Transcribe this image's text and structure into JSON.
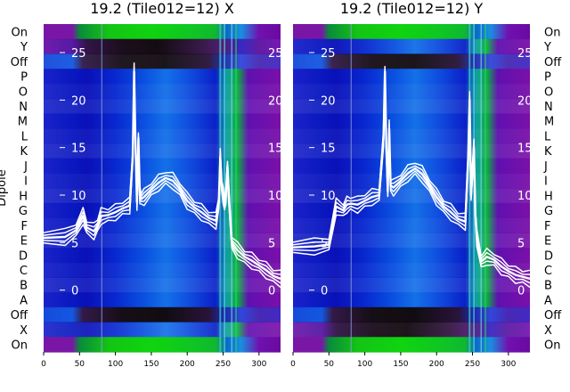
{
  "chart_data": [
    {
      "type": "heatmap",
      "title": "19.2 (Tile012=12) X",
      "ylabel": "Dipole",
      "rows": [
        "On",
        "Y",
        "Off",
        "P",
        "O",
        "N",
        "M",
        "L",
        "K",
        "J",
        "I",
        "H",
        "G",
        "F",
        "E",
        "D",
        "C",
        "B",
        "A",
        "Off",
        "X",
        "On"
      ],
      "x_ticks": [
        0,
        50,
        100,
        150,
        200,
        250,
        300
      ],
      "xlim": [
        0,
        330
      ],
      "overlay_ticks": [
        25,
        20,
        15,
        10,
        5,
        0
      ],
      "overlay_ylim": [
        -6.5,
        28
      ],
      "overlay_series": [
        {
          "x": [
            0,
            30,
            45,
            55,
            60,
            70,
            75,
            80,
            90,
            100,
            110,
            120,
            124,
            126,
            128,
            130,
            132,
            134,
            136,
            140,
            150,
            160,
            170,
            180,
            190,
            200,
            210,
            220,
            230,
            240,
            244,
            246,
            248,
            250,
            252,
            254,
            256,
            258,
            262,
            270,
            280,
            290,
            300,
            310,
            320,
            330
          ],
          "y": [
            5.5,
            5.6,
            6.3,
            7.8,
            6.6,
            6.2,
            6.8,
            7.8,
            7.9,
            8.2,
            8.6,
            8.9,
            14,
            23,
            15,
            9.3,
            16,
            10,
            9.6,
            9.8,
            10.6,
            11.3,
            11.8,
            11.5,
            10.6,
            9.4,
            8.7,
            8.2,
            7.6,
            7.3,
            9.2,
            14,
            11,
            10,
            9,
            10,
            13,
            9.8,
            5,
            4.2,
            3.5,
            3.1,
            2.6,
            2.1,
            1.5,
            1.2
          ]
        }
      ]
    },
    {
      "type": "heatmap",
      "title": "19.2 (Tile012=12) Y",
      "ylabel": "",
      "rows": [
        "On",
        "Y",
        "Off",
        "P",
        "O",
        "N",
        "M",
        "L",
        "K",
        "J",
        "I",
        "H",
        "G",
        "F",
        "E",
        "D",
        "C",
        "B",
        "A",
        "Off",
        "X",
        "On"
      ],
      "x_ticks": [
        0,
        50,
        100,
        150,
        200,
        250,
        300
      ],
      "xlim": [
        0,
        330
      ],
      "overlay_ticks": [
        25,
        20,
        15,
        10,
        5,
        0
      ],
      "overlay_ylim": [
        -6.5,
        28
      ],
      "overlay_series": [
        {
          "x": [
            0,
            30,
            50,
            60,
            70,
            75,
            80,
            90,
            100,
            110,
            120,
            126,
            128,
            130,
            132,
            134,
            136,
            140,
            150,
            160,
            170,
            180,
            190,
            200,
            210,
            220,
            230,
            240,
            244,
            246,
            248,
            252,
            254,
            256,
            262,
            270,
            280,
            290,
            300,
            310,
            320,
            330
          ],
          "y": [
            4.5,
            4.6,
            4.8,
            8.8,
            8.4,
            9,
            9.1,
            9,
            9.4,
            9.8,
            10,
            16,
            23,
            15,
            10.4,
            17,
            11,
            10.8,
            11.5,
            12.3,
            12.8,
            12.2,
            11,
            9.8,
            8.8,
            8.2,
            7.5,
            7.2,
            14,
            20,
            10,
            15,
            8,
            5.5,
            3,
            3.5,
            3.2,
            2.5,
            2,
            1.6,
            1.4,
            1.2
          ]
        }
      ]
    }
  ]
}
